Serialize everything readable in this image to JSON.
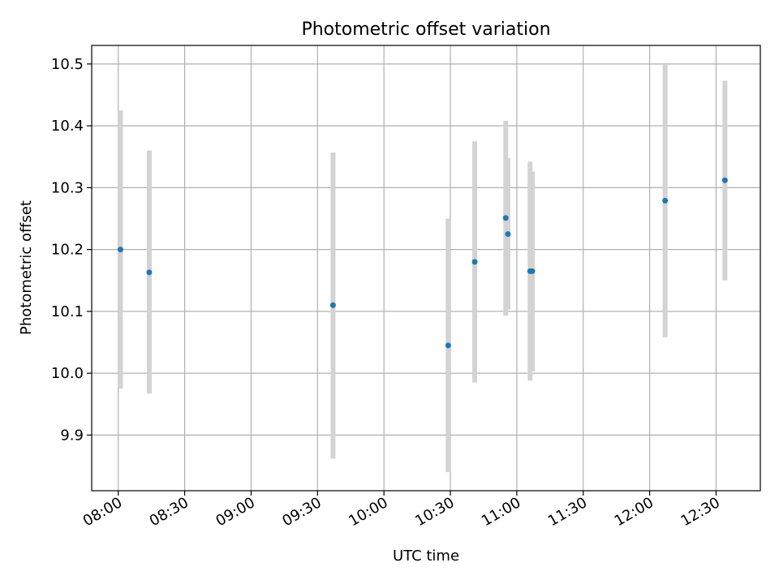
{
  "chart_data": {
    "type": "scatter",
    "title": "Photometric offset variation",
    "xlabel": "UTC time",
    "ylabel": "Photometric offset",
    "x_axis_type": "time",
    "xlim": [
      "07:48",
      "12:50"
    ],
    "ylim": [
      9.81,
      10.53
    ],
    "grid": true,
    "legend": "none",
    "x_ticks": [
      "08:00",
      "08:30",
      "09:00",
      "09:30",
      "10:00",
      "10:30",
      "11:00",
      "11:30",
      "12:00",
      "12:30"
    ],
    "y_ticks": [
      "9.9",
      "10.0",
      "10.1",
      "10.2",
      "10.3",
      "10.4",
      "10.5"
    ],
    "colors": {
      "marker": "#1f77b4",
      "errorbar": "#d3d3d3",
      "grid": "#b0b0b0"
    },
    "points": [
      {
        "time": "08:01",
        "value": 10.2,
        "low": 9.975,
        "high": 10.425
      },
      {
        "time": "08:14",
        "value": 10.163,
        "low": 9.967,
        "high": 10.36
      },
      {
        "time": "09:37",
        "value": 10.11,
        "low": 9.862,
        "high": 10.357
      },
      {
        "time": "10:29",
        "value": 10.045,
        "low": 9.84,
        "high": 10.25
      },
      {
        "time": "10:41",
        "value": 10.18,
        "low": 9.985,
        "high": 10.375
      },
      {
        "time": "10:55",
        "value": 10.251,
        "low": 10.093,
        "high": 10.408
      },
      {
        "time": "10:56",
        "value": 10.225,
        "low": 10.103,
        "high": 10.348
      },
      {
        "time": "11:06",
        "value": 10.165,
        "low": 9.988,
        "high": 10.342
      },
      {
        "time": "11:07",
        "value": 10.165,
        "low": 10.003,
        "high": 10.326
      },
      {
        "time": "12:07",
        "value": 10.279,
        "low": 10.058,
        "high": 10.5
      },
      {
        "time": "12:34",
        "value": 10.312,
        "low": 10.15,
        "high": 10.473
      }
    ]
  }
}
